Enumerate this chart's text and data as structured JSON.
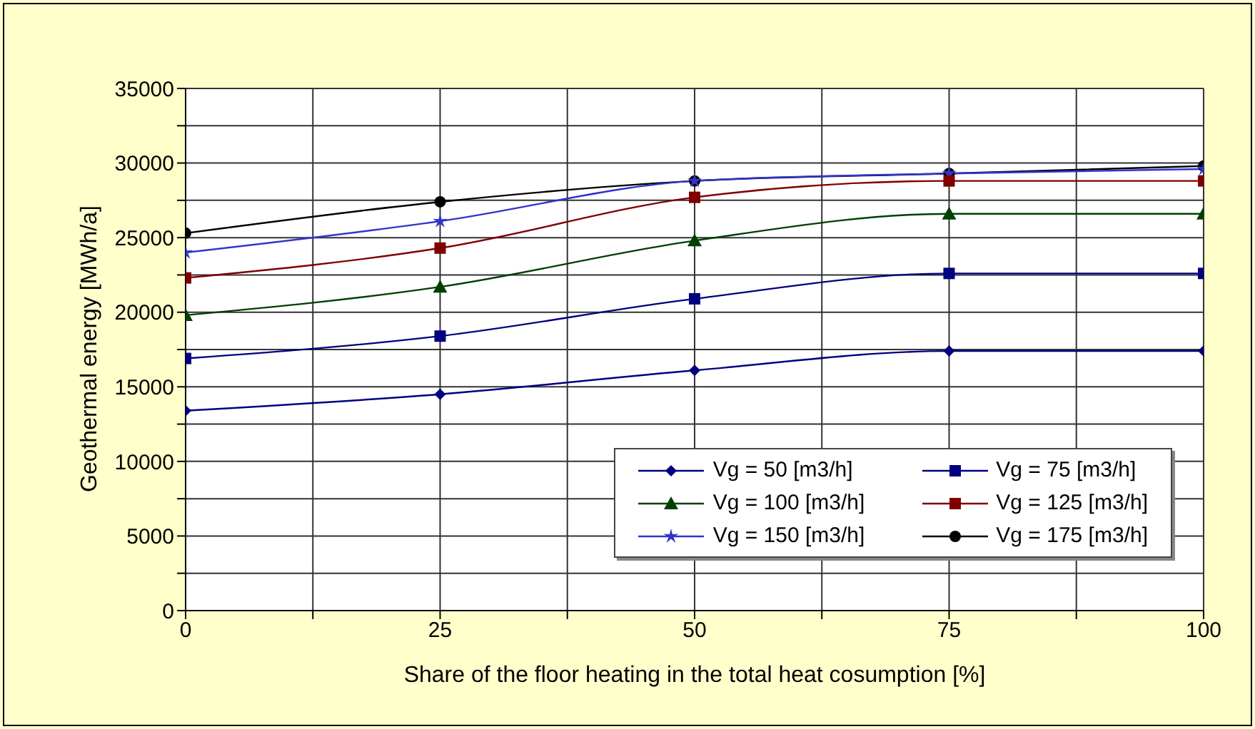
{
  "chart_data": {
    "type": "line",
    "xlabel": "Share of the floor heating in the total heat cosumption [%]",
    "ylabel": "Geothermal energy [MWh/a]",
    "x": [
      0,
      25,
      50,
      75,
      100
    ],
    "xlim": [
      0,
      100
    ],
    "xticks": [
      0,
      {
        "value": 12.5,
        "label": null
      },
      25,
      {
        "value": 37.5,
        "label": null
      },
      50,
      {
        "value": 62.5,
        "label": null
      },
      75,
      {
        "value": 87.5,
        "label": null
      },
      100
    ],
    "ylim": [
      0,
      35000
    ],
    "yticks": [
      0,
      {
        "value": 2500,
        "label": null
      },
      5000,
      {
        "value": 7500,
        "label": null
      },
      10000,
      {
        "value": 12500,
        "label": null
      },
      15000,
      {
        "value": 17500,
        "label": null
      },
      20000,
      {
        "value": 22500,
        "label": null
      },
      25000,
      {
        "value": 27500,
        "label": null
      },
      30000,
      {
        "value": 32500,
        "label": null
      },
      35000
    ],
    "grid": true,
    "legend": "bottom right",
    "line_style": "solid",
    "series": [
      {
        "name": "Vg = 50 [m3/h]",
        "color": "#000080",
        "marker": "diamond",
        "values": [
          13400,
          14500,
          16100,
          17400,
          17400
        ]
      },
      {
        "name": "Vg = 75 [m3/h]",
        "color": "#000080",
        "marker": "square",
        "values": [
          16900,
          18400,
          20900,
          22600,
          22600
        ]
      },
      {
        "name": "Vg = 100 [m3/h]",
        "color": "#004000",
        "marker": "triangle",
        "values": [
          19800,
          21700,
          24800,
          26600,
          26600
        ]
      },
      {
        "name": "Vg = 125 [m3/h]",
        "color": "#800000",
        "marker": "square",
        "values": [
          22300,
          24300,
          27700,
          28800,
          28800
        ]
      },
      {
        "name": "Vg = 150 [m3/h]",
        "color": "#3333cc",
        "marker": "star",
        "values": [
          24000,
          26100,
          28800,
          29300,
          29600
        ]
      },
      {
        "name": "Vg = 175 [m3/h]",
        "color": "#000000",
        "marker": "circle",
        "values": [
          25300,
          27400,
          28800,
          29300,
          29800
        ]
      }
    ]
  }
}
